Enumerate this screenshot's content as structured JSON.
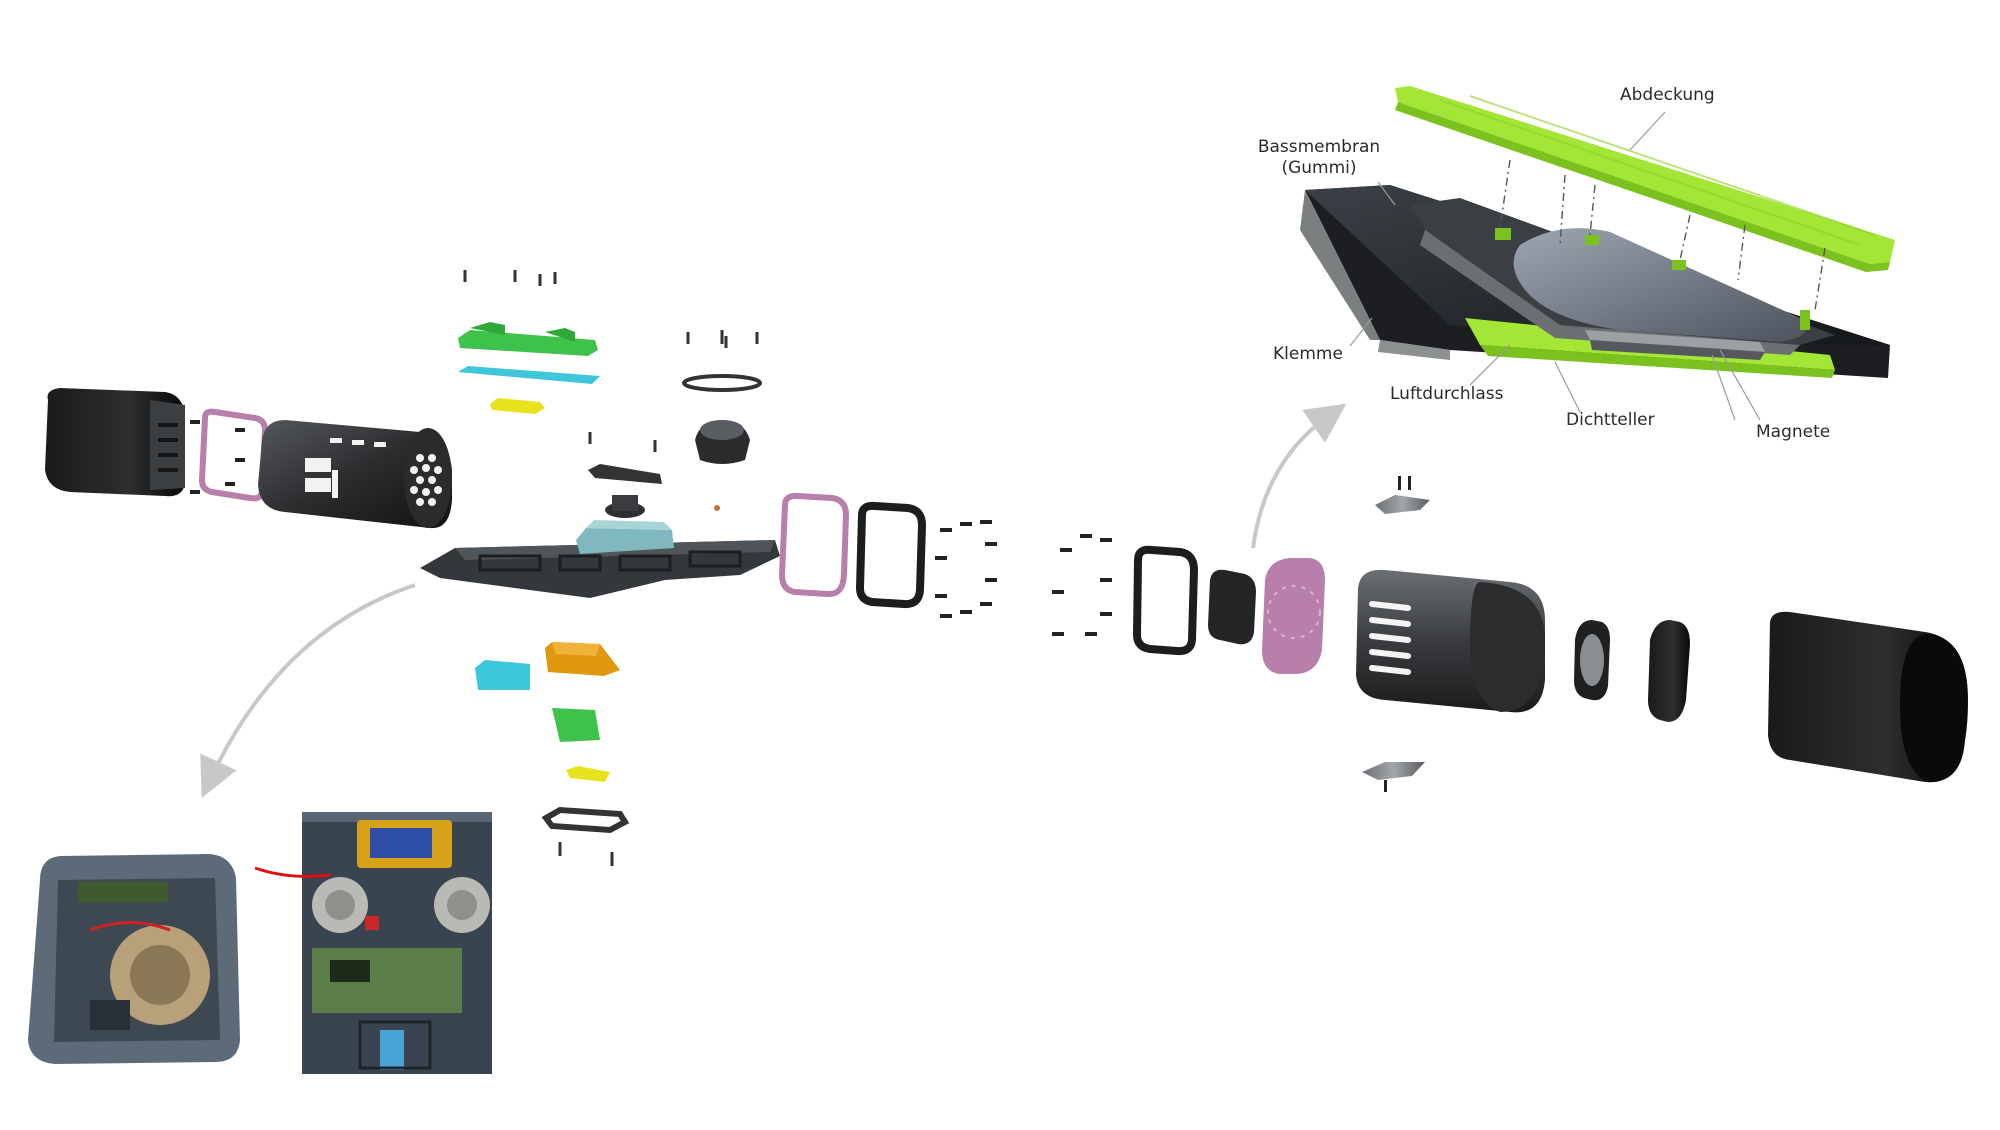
{
  "labels": {
    "abdeckung": "Abdeckung",
    "bassmembran_line1": "Bassmembran",
    "bassmembran_line2": "(Gummi)",
    "klemme": "Klemme",
    "luftdurchlass": "Luftdurchlass",
    "dichtteller": "Dichtteller",
    "magnete": "Magnete"
  },
  "colors": {
    "lime": "#a3e635",
    "lime_dark": "#7cc21f",
    "green": "#3fc24b",
    "cyan": "#3ec7da",
    "yellow": "#e8e21c",
    "orange": "#e0980f",
    "pink": "#b77fa9",
    "housing": "#2e2f31",
    "housing_light": "#4a4c4f",
    "bluegrey": "#7fb9bd",
    "arrow": "#c8c8c8"
  }
}
